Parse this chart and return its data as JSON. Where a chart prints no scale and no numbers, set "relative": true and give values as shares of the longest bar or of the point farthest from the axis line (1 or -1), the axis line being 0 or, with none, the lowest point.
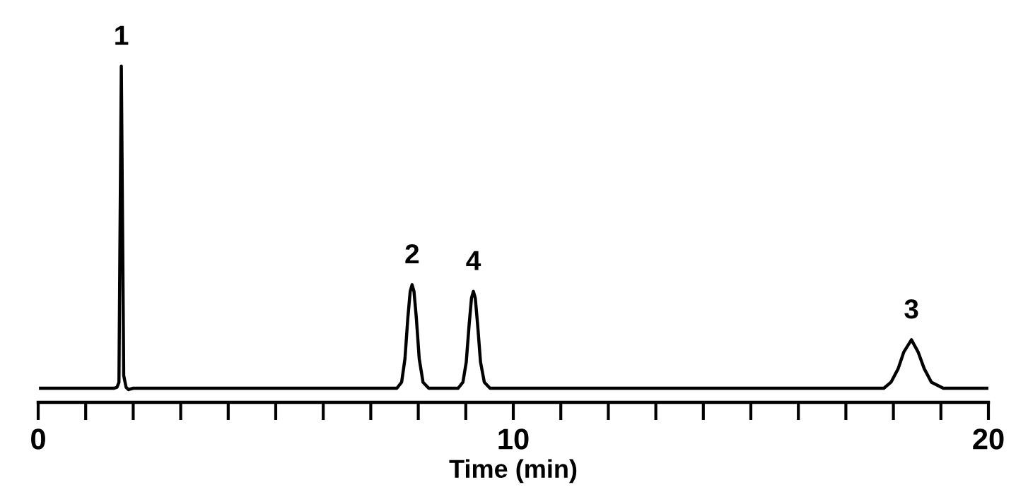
{
  "chart_data": {
    "type": "line",
    "relative": true,
    "xlabel": "Time (min)",
    "xlim": [
      0,
      20
    ],
    "xticks": [
      0,
      {
        "value": 1,
        "label": null
      },
      {
        "value": 2,
        "label": null
      },
      {
        "value": 3,
        "label": null
      },
      {
        "value": 4,
        "label": null
      },
      {
        "value": 5,
        "label": null
      },
      {
        "value": 6,
        "label": null
      },
      {
        "value": 7,
        "label": null
      },
      {
        "value": 8,
        "label": null
      },
      {
        "value": 9,
        "label": null
      },
      10,
      {
        "value": 11,
        "label": null
      },
      {
        "value": 12,
        "label": null
      },
      {
        "value": 13,
        "label": null
      },
      {
        "value": 14,
        "label": null
      },
      {
        "value": 15,
        "label": null
      },
      {
        "value": 16,
        "label": null
      },
      {
        "value": 17,
        "label": null
      },
      {
        "value": 18,
        "label": null
      },
      {
        "value": 19,
        "label": null
      },
      20
    ],
    "tick_labels": "x",
    "grid": false,
    "legend": false,
    "marker": "none",
    "line_style": "solid",
    "series": [
      {
        "color": "#000000",
        "x": [
          0.05,
          1.6,
          1.66,
          1.7,
          1.72,
          1.75,
          1.78,
          1.8,
          1.85,
          1.9,
          2.0,
          7.55,
          7.65,
          7.72,
          7.78,
          7.83,
          7.87,
          7.91,
          7.96,
          8.02,
          8.1,
          8.22,
          8.84,
          8.94,
          9.01,
          9.07,
          9.12,
          9.16,
          9.2,
          9.25,
          9.31,
          9.39,
          9.51,
          17.8,
          17.95,
          18.1,
          18.22,
          18.38,
          18.52,
          18.65,
          18.8,
          19.05,
          20.0
        ],
        "values": [
          0.042,
          0.042,
          0.045,
          0.06,
          0.45,
          1.0,
          0.45,
          0.08,
          0.045,
          0.038,
          0.042,
          0.042,
          0.06,
          0.13,
          0.25,
          0.33,
          0.35,
          0.33,
          0.25,
          0.13,
          0.06,
          0.042,
          0.042,
          0.06,
          0.12,
          0.23,
          0.31,
          0.33,
          0.31,
          0.23,
          0.12,
          0.06,
          0.042,
          0.042,
          0.06,
          0.1,
          0.15,
          0.186,
          0.15,
          0.1,
          0.06,
          0.042,
          0.042
        ]
      }
    ],
    "annotations": [
      {
        "text": "1",
        "x": 1.75,
        "y": 1.0
      },
      {
        "text": "2",
        "x": 7.87,
        "y": 0.35
      },
      {
        "text": "4",
        "x": 9.16,
        "y": 0.33
      },
      {
        "text": "3",
        "x": 18.38,
        "y": 0.186
      }
    ]
  }
}
